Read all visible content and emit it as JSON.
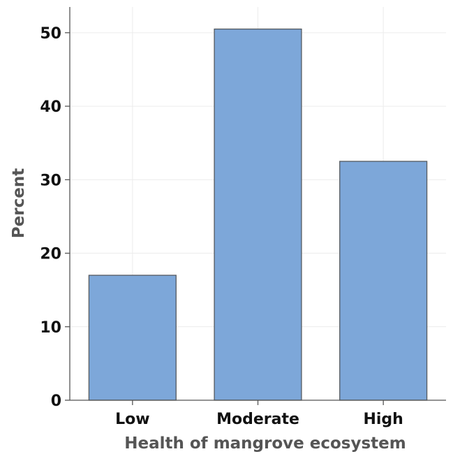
{
  "chart_data": {
    "type": "bar",
    "categories": [
      "Low",
      "Moderate",
      "High"
    ],
    "values": [
      17.0,
      50.5,
      32.5
    ],
    "xlabel": "Health of mangrove ecosystem",
    "ylabel": "Percent",
    "ylim": [
      0,
      53.5
    ],
    "yticks": [
      0,
      10,
      20,
      30,
      40,
      50
    ],
    "grid": true,
    "colors": {
      "bar_fill": "#7da7d9",
      "bar_stroke": "#555a60"
    }
  }
}
